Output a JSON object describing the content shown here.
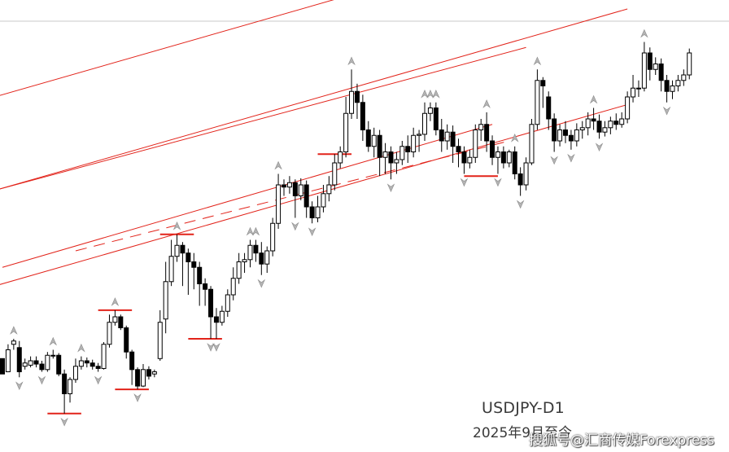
{
  "chart_data": {
    "type": "candlestick",
    "title": "USDJPY-D1",
    "subtitle": "2025年9月至今",
    "grid": false,
    "legend": "none",
    "candles": [
      [
        22,
        8,
        20,
        13
      ],
      [
        10,
        30,
        12,
        35
      ],
      [
        35,
        38,
        40,
        30
      ],
      [
        32,
        10,
        38,
        5
      ],
      [
        15,
        18,
        22,
        12
      ],
      [
        16,
        20,
        24,
        14
      ],
      [
        20,
        17,
        24,
        14
      ],
      [
        17,
        12,
        20,
        10
      ],
      [
        12,
        25,
        28,
        10
      ],
      [
        25,
        25,
        30,
        22
      ],
      [
        25,
        8,
        27,
        6
      ],
      [
        8,
        -10,
        12,
        -28
      ],
      [
        -10,
        3,
        5,
        -18
      ],
      [
        3,
        15,
        22,
        0
      ],
      [
        15,
        20,
        24,
        12
      ],
      [
        20,
        18,
        23,
        14
      ],
      [
        18,
        15,
        21,
        12
      ],
      [
        15,
        13,
        18,
        10
      ],
      [
        13,
        35,
        37,
        12
      ],
      [
        35,
        55,
        62,
        32
      ],
      [
        55,
        60,
        66,
        52
      ],
      [
        60,
        50,
        62,
        48
      ],
      [
        50,
        28,
        52,
        22
      ],
      [
        28,
        12,
        30,
        -2
      ],
      [
        12,
        -3,
        14,
        -6
      ],
      [
        -3,
        12,
        17,
        -4
      ],
      [
        12,
        6,
        15,
        3
      ],
      [
        8,
        10,
        12,
        5
      ],
      [
        22,
        55,
        66,
        20
      ],
      [
        58,
        92,
        110,
        45
      ],
      [
        92,
        115,
        130,
        88
      ],
      [
        115,
        125,
        135,
        110
      ],
      [
        125,
        118,
        128,
        88
      ],
      [
        118,
        110,
        122,
        80
      ],
      [
        110,
        105,
        118,
        85
      ],
      [
        105,
        90,
        110,
        70
      ],
      [
        90,
        85,
        95,
        70
      ],
      [
        85,
        60,
        88,
        40
      ],
      [
        60,
        55,
        68,
        40
      ],
      [
        55,
        65,
        70,
        52
      ],
      [
        65,
        80,
        85,
        60
      ],
      [
        80,
        95,
        105,
        75
      ],
      [
        95,
        110,
        118,
        90
      ],
      [
        110,
        112,
        118,
        100
      ],
      [
        112,
        125,
        130,
        105
      ],
      [
        125,
        118,
        130,
        110
      ],
      [
        118,
        108,
        128,
        98
      ],
      [
        108,
        120,
        124,
        100
      ],
      [
        120,
        145,
        150,
        115
      ],
      [
        145,
        180,
        190,
        140
      ],
      [
        180,
        178,
        185,
        170
      ],
      [
        178,
        182,
        188,
        172
      ],
      [
        182,
        170,
        185,
        150
      ],
      [
        170,
        180,
        186,
        166
      ],
      [
        180,
        160,
        184,
        150
      ],
      [
        160,
        150,
        165,
        145
      ],
      [
        150,
        160,
        170,
        146
      ],
      [
        160,
        172,
        180,
        155
      ],
      [
        172,
        180,
        188,
        165
      ],
      [
        180,
        200,
        208,
        175
      ],
      [
        200,
        210,
        215,
        195
      ],
      [
        210,
        245,
        260,
        205
      ],
      [
        245,
        265,
        285,
        240
      ],
      [
        265,
        255,
        272,
        240
      ],
      [
        255,
        230,
        262,
        220
      ],
      [
        230,
        215,
        238,
        210
      ],
      [
        215,
        225,
        232,
        205
      ],
      [
        225,
        205,
        230,
        188
      ],
      [
        205,
        210,
        218,
        190
      ],
      [
        210,
        200,
        215,
        185
      ],
      [
        200,
        203,
        210,
        190
      ],
      [
        203,
        215,
        220,
        198
      ],
      [
        215,
        210,
        225,
        200
      ],
      [
        210,
        225,
        232,
        205
      ],
      [
        225,
        226,
        230,
        210
      ],
      [
        226,
        245,
        255,
        220
      ],
      [
        245,
        250,
        255,
        238
      ],
      [
        250,
        230,
        255,
        225
      ],
      [
        230,
        220,
        240,
        210
      ],
      [
        220,
        228,
        235,
        212
      ],
      [
        228,
        215,
        234,
        200
      ],
      [
        215,
        210,
        222,
        196
      ],
      [
        210,
        200,
        215,
        190
      ],
      [
        200,
        205,
        212,
        195
      ],
      [
        205,
        230,
        235,
        200
      ],
      [
        230,
        235,
        240,
        220
      ],
      [
        235,
        220,
        246,
        210
      ],
      [
        220,
        205,
        225,
        198
      ],
      [
        205,
        210,
        215,
        190
      ],
      [
        210,
        200,
        215,
        195
      ],
      [
        200,
        210,
        212,
        196
      ],
      [
        210,
        190,
        215,
        185
      ],
      [
        190,
        180,
        196,
        170
      ],
      [
        180,
        200,
        205,
        175
      ],
      [
        200,
        235,
        240,
        198
      ],
      [
        235,
        275,
        285,
        230
      ],
      [
        275,
        270,
        278,
        250
      ],
      [
        260,
        240,
        265,
        230
      ],
      [
        240,
        220,
        245,
        210
      ],
      [
        220,
        230,
        235,
        215
      ],
      [
        230,
        225,
        238,
        218
      ],
      [
        225,
        220,
        230,
        212
      ],
      [
        220,
        230,
        236,
        215
      ],
      [
        230,
        232,
        238,
        222
      ],
      [
        232,
        240,
        246,
        225
      ],
      [
        240,
        238,
        250,
        230
      ],
      [
        238,
        228,
        244,
        222
      ],
      [
        228,
        232,
        238,
        224
      ],
      [
        232,
        238,
        242,
        226
      ],
      [
        238,
        235,
        245,
        230
      ],
      [
        235,
        240,
        246,
        232
      ],
      [
        240,
        260,
        265,
        236
      ],
      [
        260,
        268,
        280,
        255
      ],
      [
        268,
        268,
        275,
        260
      ],
      [
        268,
        300,
        310,
        265
      ],
      [
        300,
        285,
        305,
        275
      ],
      [
        285,
        290,
        296,
        280
      ],
      [
        290,
        275,
        295,
        265
      ],
      [
        275,
        265,
        280,
        255
      ],
      [
        265,
        270,
        275,
        258
      ],
      [
        270,
        275,
        280,
        265
      ],
      [
        275,
        280,
        285,
        270
      ],
      [
        280,
        300,
        304,
        276
      ]
    ],
    "trend_lines": [
      [
        [
          -15,
          240
        ],
        [
          111,
          425
        ]
      ],
      [
        [
          -15,
          155
        ],
        [
          111,
          340
        ]
      ],
      [
        [
          -15,
          68
        ],
        [
          111,
          253
        ]
      ],
      [
        [
          0,
          105
        ],
        [
          87,
          235
        ]
      ],
      [
        [
          -5,
          170
        ],
        [
          93,
          305
        ]
      ],
      [
        [
          13,
          120
        ],
        [
          90,
          220
        ]
      ]
    ],
    "horizontal_markers": [
      [
        11,
        3,
        -28
      ],
      [
        20,
        3,
        66
      ],
      [
        23,
        3,
        -6
      ],
      [
        31,
        3,
        135
      ],
      [
        36,
        3,
        40
      ],
      [
        59,
        3,
        208
      ],
      [
        85,
        3,
        188
      ]
    ]
  },
  "labels": {
    "symbol": "USDJPY-D1",
    "period": "2025年9月至今",
    "watermark": "搜狐号@汇商传媒Forexpress"
  }
}
